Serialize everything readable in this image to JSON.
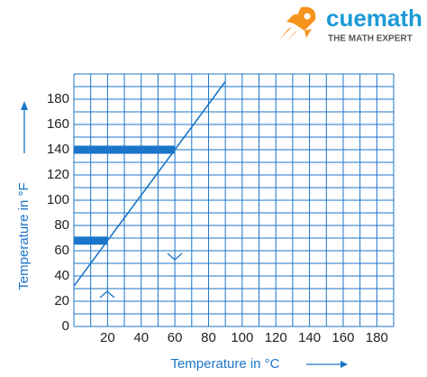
{
  "logo": {
    "name": "cuemath",
    "tagline": "THE MATH EXPERT"
  },
  "chart_data": {
    "type": "line",
    "x_label": "Temperature in °C",
    "y_label": "Temperature in °F",
    "x": [
      0,
      90
    ],
    "values": [
      32,
      194
    ],
    "color": "#1b75c9",
    "highlights": [
      {
        "x": 20,
        "y": 68
      },
      {
        "x": 60,
        "y": 140
      }
    ],
    "xlim": [
      0,
      190
    ],
    "ylim": [
      0,
      200
    ],
    "xticks": [
      20,
      40,
      60,
      80,
      100,
      120,
      140,
      160,
      180
    ],
    "yticks": [
      0,
      20,
      40,
      60,
      80,
      100,
      120,
      140,
      160,
      180
    ],
    "grid": true
  }
}
